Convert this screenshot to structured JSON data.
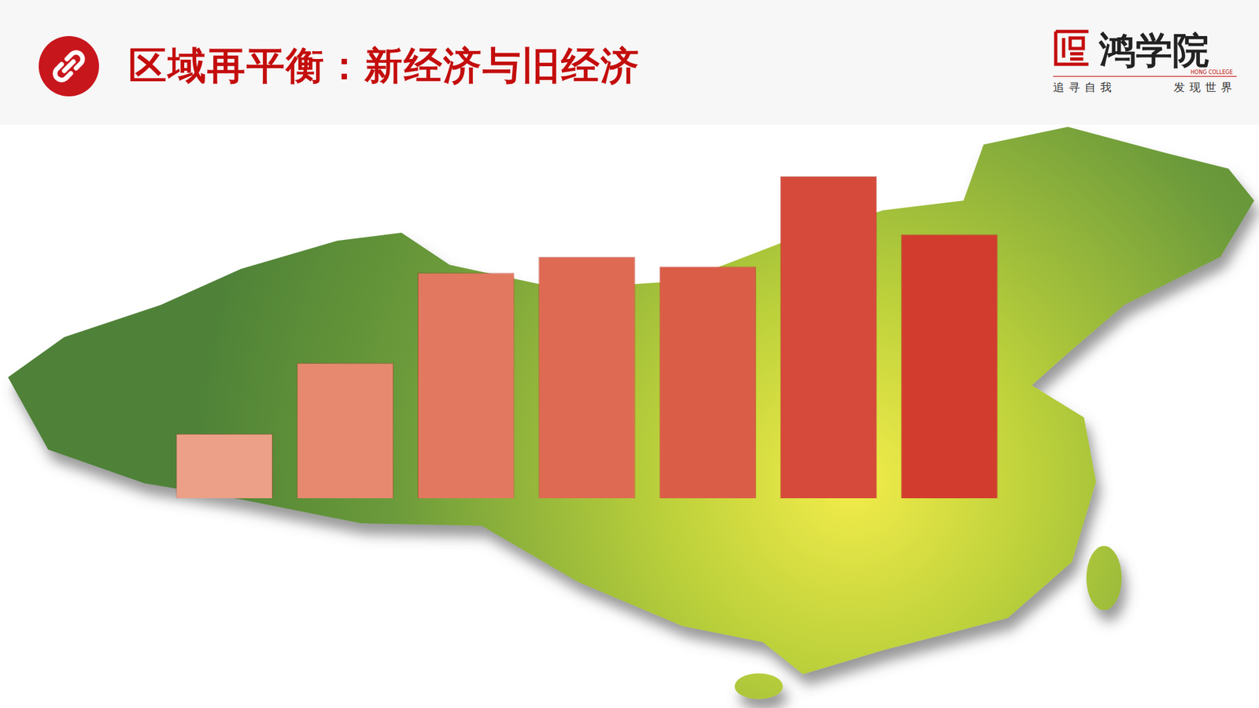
{
  "header": {
    "title": "区域再平衡：新经济与旧经济",
    "logo": "鸿学院",
    "logo_en": "HONG COLLEGE",
    "slogan": [
      "追寻自我",
      "发现世界"
    ]
  },
  "chart_data": {
    "type": "bar",
    "categories": [
      null,
      null,
      null,
      null,
      null,
      null,
      null
    ],
    "values": [
      20,
      42,
      70,
      75,
      72,
      100,
      82
    ],
    "colors": [
      "#eca088",
      "#e6896f",
      "#e27860",
      "#de6a53",
      "#da5d48",
      "#d64a3b",
      "#d23c2f"
    ],
    "ylim": [
      0,
      110
    ],
    "grid": false,
    "tick_labels": false
  }
}
